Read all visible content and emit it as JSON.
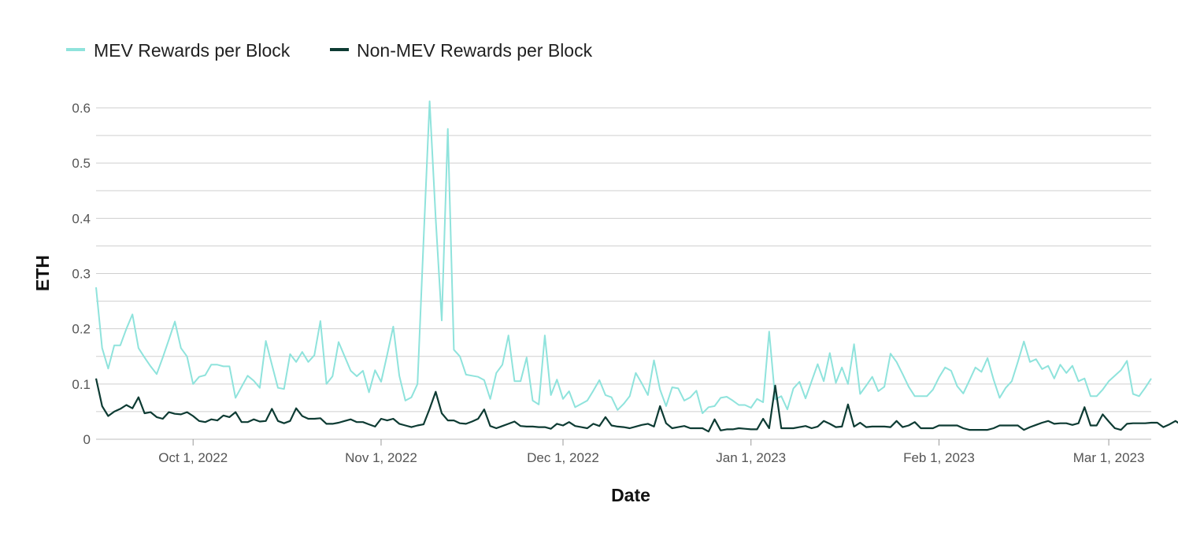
{
  "chart_data": {
    "type": "line",
    "xlabel": "Date",
    "ylabel": "ETH",
    "ylim": [
      0,
      0.6
    ],
    "y_ticks": [
      {
        "v": 0,
        "label": "0"
      },
      {
        "v": 0.1,
        "label": "0.1"
      },
      {
        "v": 0.2,
        "label": "0.2"
      },
      {
        "v": 0.3,
        "label": "0.3"
      },
      {
        "v": 0.4,
        "label": "0.4"
      },
      {
        "v": 0.5,
        "label": "0.5"
      },
      {
        "v": 0.6,
        "label": "0.6"
      }
    ],
    "x_range": [
      "2022-09-15",
      "2023-03-08"
    ],
    "x_ticks": [
      {
        "date": "2022-10-01",
        "label": "Oct 1, 2022"
      },
      {
        "date": "2022-11-01",
        "label": "Nov 1, 2022"
      },
      {
        "date": "2022-12-01",
        "label": "Dec 1, 2022"
      },
      {
        "date": "2023-01-01",
        "label": "Jan 1, 2023"
      },
      {
        "date": "2023-02-01",
        "label": "Feb 1, 2023"
      },
      {
        "date": "2023-03-01",
        "label": "Mar 1, 2023"
      }
    ],
    "grid": true,
    "legend_position": "top-left",
    "series": [
      {
        "name": "MEV Rewards per Block",
        "color": "#8fe3dc",
        "start_date": "2022-09-15",
        "values": [
          0.275,
          0.165,
          0.128,
          0.17,
          0.17,
          0.2,
          0.226,
          0.165,
          0.148,
          0.132,
          0.118,
          0.148,
          0.18,
          0.213,
          0.165,
          0.15,
          0.1,
          0.113,
          0.116,
          0.135,
          0.135,
          0.132,
          0.132,
          0.075,
          0.095,
          0.115,
          0.106,
          0.093,
          0.178,
          0.135,
          0.093,
          0.091,
          0.154,
          0.14,
          0.158,
          0.14,
          0.152,
          0.214,
          0.1,
          0.114,
          0.176,
          0.15,
          0.124,
          0.114,
          0.124,
          0.085,
          0.125,
          0.104,
          0.153,
          0.204,
          0.115,
          0.07,
          0.076,
          0.1,
          0.36,
          0.612,
          0.4,
          0.215,
          0.562,
          0.162,
          0.15,
          0.117,
          0.115,
          0.113,
          0.107,
          0.073,
          0.12,
          0.135,
          0.188,
          0.105,
          0.105,
          0.148,
          0.07,
          0.063,
          0.188,
          0.08,
          0.108,
          0.073,
          0.087,
          0.058,
          0.064,
          0.07,
          0.088,
          0.107,
          0.08,
          0.076,
          0.053,
          0.064,
          0.078,
          0.12,
          0.101,
          0.08,
          0.143,
          0.09,
          0.06,
          0.094,
          0.092,
          0.07,
          0.076,
          0.088,
          0.047,
          0.058,
          0.06,
          0.075,
          0.077,
          0.07,
          0.062,
          0.062,
          0.057,
          0.073,
          0.067,
          0.195,
          0.072,
          0.078,
          0.054,
          0.092,
          0.104,
          0.074,
          0.105,
          0.136,
          0.105,
          0.156,
          0.102,
          0.13,
          0.1,
          0.172,
          0.082,
          0.097,
          0.113,
          0.087,
          0.095,
          0.155,
          0.14,
          0.118,
          0.095,
          0.078,
          0.078,
          0.078,
          0.09,
          0.112,
          0.13,
          0.124,
          0.096,
          0.083,
          0.106,
          0.13,
          0.122,
          0.147,
          0.108,
          0.075,
          0.093,
          0.105,
          0.14,
          0.177,
          0.14,
          0.145,
          0.127,
          0.133,
          0.11,
          0.135,
          0.12,
          0.133,
          0.105,
          0.11,
          0.078,
          0.078,
          0.09,
          0.105,
          0.115,
          0.125,
          0.142,
          0.082,
          0.078,
          0.093,
          0.11
        ]
      },
      {
        "name": "Non-MEV Rewards per Block",
        "color": "#0d3b33",
        "start_date": "2022-09-15",
        "values": [
          0.11,
          0.06,
          0.042,
          0.05,
          0.055,
          0.062,
          0.056,
          0.076,
          0.047,
          0.049,
          0.04,
          0.037,
          0.049,
          0.046,
          0.045,
          0.049,
          0.042,
          0.033,
          0.031,
          0.036,
          0.034,
          0.043,
          0.04,
          0.049,
          0.031,
          0.031,
          0.036,
          0.032,
          0.033,
          0.055,
          0.033,
          0.029,
          0.033,
          0.056,
          0.042,
          0.037,
          0.037,
          0.038,
          0.028,
          0.028,
          0.03,
          0.033,
          0.036,
          0.031,
          0.031,
          0.027,
          0.023,
          0.037,
          0.034,
          0.037,
          0.028,
          0.025,
          0.022,
          0.025,
          0.027,
          0.055,
          0.086,
          0.047,
          0.034,
          0.034,
          0.029,
          0.028,
          0.032,
          0.037,
          0.054,
          0.024,
          0.02,
          0.024,
          0.028,
          0.032,
          0.024,
          0.023,
          0.023,
          0.022,
          0.022,
          0.019,
          0.028,
          0.025,
          0.031,
          0.024,
          0.022,
          0.02,
          0.028,
          0.024,
          0.04,
          0.025,
          0.023,
          0.022,
          0.02,
          0.023,
          0.026,
          0.028,
          0.023,
          0.06,
          0.029,
          0.02,
          0.022,
          0.024,
          0.02,
          0.02,
          0.02,
          0.014,
          0.036,
          0.016,
          0.018,
          0.018,
          0.02,
          0.019,
          0.018,
          0.018,
          0.037,
          0.02,
          0.097,
          0.02,
          0.02,
          0.02,
          0.022,
          0.024,
          0.02,
          0.023,
          0.033,
          0.028,
          0.022,
          0.023,
          0.063,
          0.023,
          0.03,
          0.022,
          0.023,
          0.023,
          0.023,
          0.022,
          0.033,
          0.022,
          0.025,
          0.031,
          0.02,
          0.02,
          0.02,
          0.025,
          0.025,
          0.025,
          0.025,
          0.02,
          0.017,
          0.017,
          0.017,
          0.017,
          0.02,
          0.025,
          0.025,
          0.025,
          0.025,
          0.017,
          0.022,
          0.026,
          0.03,
          0.033,
          0.028,
          0.029,
          0.029,
          0.026,
          0.029,
          0.058,
          0.025,
          0.025,
          0.045,
          0.032,
          0.02,
          0.017,
          0.028,
          0.029,
          0.029,
          0.029,
          0.03,
          0.03,
          0.022,
          0.027,
          0.033,
          0.026
        ]
      }
    ]
  }
}
